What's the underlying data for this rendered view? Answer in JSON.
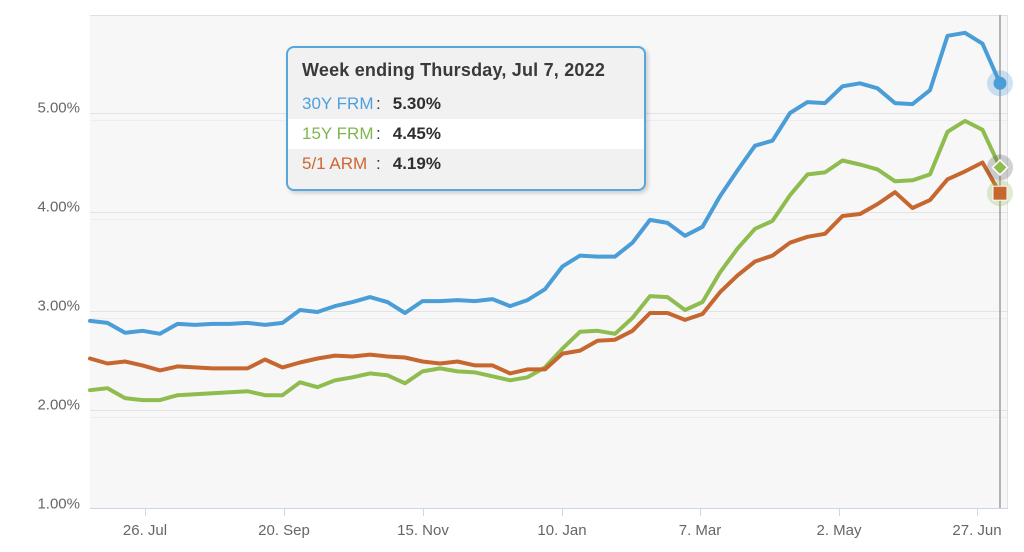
{
  "tooltip": {
    "title": "Week ending Thursday, Jul 7, 2022",
    "border_color": "#58a7dc",
    "rows": [
      {
        "label": "30Y FRM",
        "colon": ":",
        "value": "5.30%",
        "color": "#4da0dd"
      },
      {
        "label": "15Y FRM",
        "colon": ":",
        "value": "4.45%",
        "color": "#7eb74d"
      },
      {
        "label": "5/1 ARM",
        "colon": ":",
        "value": "4.19%",
        "color": "#cc6633"
      }
    ],
    "highlighted_row": "15Y FRM"
  },
  "chart_data": {
    "type": "line",
    "title": "",
    "xlabel": "",
    "ylabel": "",
    "x_unit": "weekly (Thursdays), Jul 2021 - Jul 7 2022",
    "x_tick_labels": [
      "26. Jul",
      "20. Sep",
      "15. Nov",
      "10. Jan",
      "7. Mar",
      "2. May",
      "27. Jun"
    ],
    "y_tick_labels": [
      "5.00%",
      "4.00%",
      "3.00%",
      "2.00%",
      "1.00%"
    ],
    "ylim": [
      1.0,
      6.0
    ],
    "grid": "horizontal",
    "legend_position": "none (tooltip only)",
    "crosshair": "vertical line at last point",
    "series": [
      {
        "name": "30Y FRM",
        "color": "#4a9dd6",
        "marker": "circle",
        "halo_color": "#4a9dd6",
        "last_value": 5.3,
        "values": [
          2.9,
          2.88,
          2.78,
          2.8,
          2.77,
          2.87,
          2.86,
          2.87,
          2.87,
          2.88,
          2.86,
          2.88,
          3.01,
          2.99,
          3.05,
          3.09,
          3.14,
          3.09,
          2.98,
          3.1,
          3.1,
          3.11,
          3.1,
          3.12,
          3.05,
          3.11,
          3.22,
          3.45,
          3.56,
          3.55,
          3.55,
          3.69,
          3.92,
          3.89,
          3.76,
          3.85,
          4.16,
          4.42,
          4.67,
          4.72,
          5.0,
          5.11,
          5.1,
          5.27,
          5.3,
          5.25,
          5.1,
          5.09,
          5.23,
          5.78,
          5.81,
          5.7,
          5.3
        ]
      },
      {
        "name": "15Y FRM",
        "color": "#8fbc4e",
        "marker": "diamond",
        "halo_color": "#5a5a5a",
        "last_value": 4.45,
        "values": [
          2.2,
          2.22,
          2.12,
          2.1,
          2.1,
          2.15,
          2.16,
          2.17,
          2.18,
          2.19,
          2.15,
          2.15,
          2.28,
          2.23,
          2.3,
          2.33,
          2.37,
          2.35,
          2.27,
          2.39,
          2.42,
          2.39,
          2.38,
          2.34,
          2.3,
          2.33,
          2.43,
          2.62,
          2.79,
          2.8,
          2.77,
          2.93,
          3.15,
          3.14,
          3.01,
          3.09,
          3.39,
          3.63,
          3.83,
          3.91,
          4.17,
          4.38,
          4.4,
          4.52,
          4.48,
          4.43,
          4.31,
          4.32,
          4.38,
          4.81,
          4.92,
          4.83,
          4.45
        ]
      },
      {
        "name": "5/1 ARM",
        "color": "#c6672f",
        "marker": "square",
        "halo_color": "#8fbc4e",
        "last_value": 4.19,
        "values": [
          2.52,
          2.47,
          2.49,
          2.45,
          2.4,
          2.44,
          2.43,
          2.42,
          2.42,
          2.42,
          2.51,
          2.43,
          2.48,
          2.52,
          2.55,
          2.54,
          2.56,
          2.54,
          2.53,
          2.49,
          2.47,
          2.49,
          2.45,
          2.45,
          2.37,
          2.41,
          2.41,
          2.57,
          2.6,
          2.7,
          2.71,
          2.8,
          2.98,
          2.98,
          2.91,
          2.97,
          3.19,
          3.36,
          3.5,
          3.56,
          3.69,
          3.75,
          3.78,
          3.96,
          3.98,
          4.08,
          4.2,
          4.04,
          4.12,
          4.33,
          4.41,
          4.5,
          4.19
        ]
      }
    ]
  },
  "colors": {
    "plot_background": "#f7f7f8",
    "gridline": "#e3e3e6",
    "gridline_minor": "#ededef",
    "axis_line": "#ccd6eb",
    "axis_label": "#666666",
    "crosshair": "#9e9e9e"
  }
}
